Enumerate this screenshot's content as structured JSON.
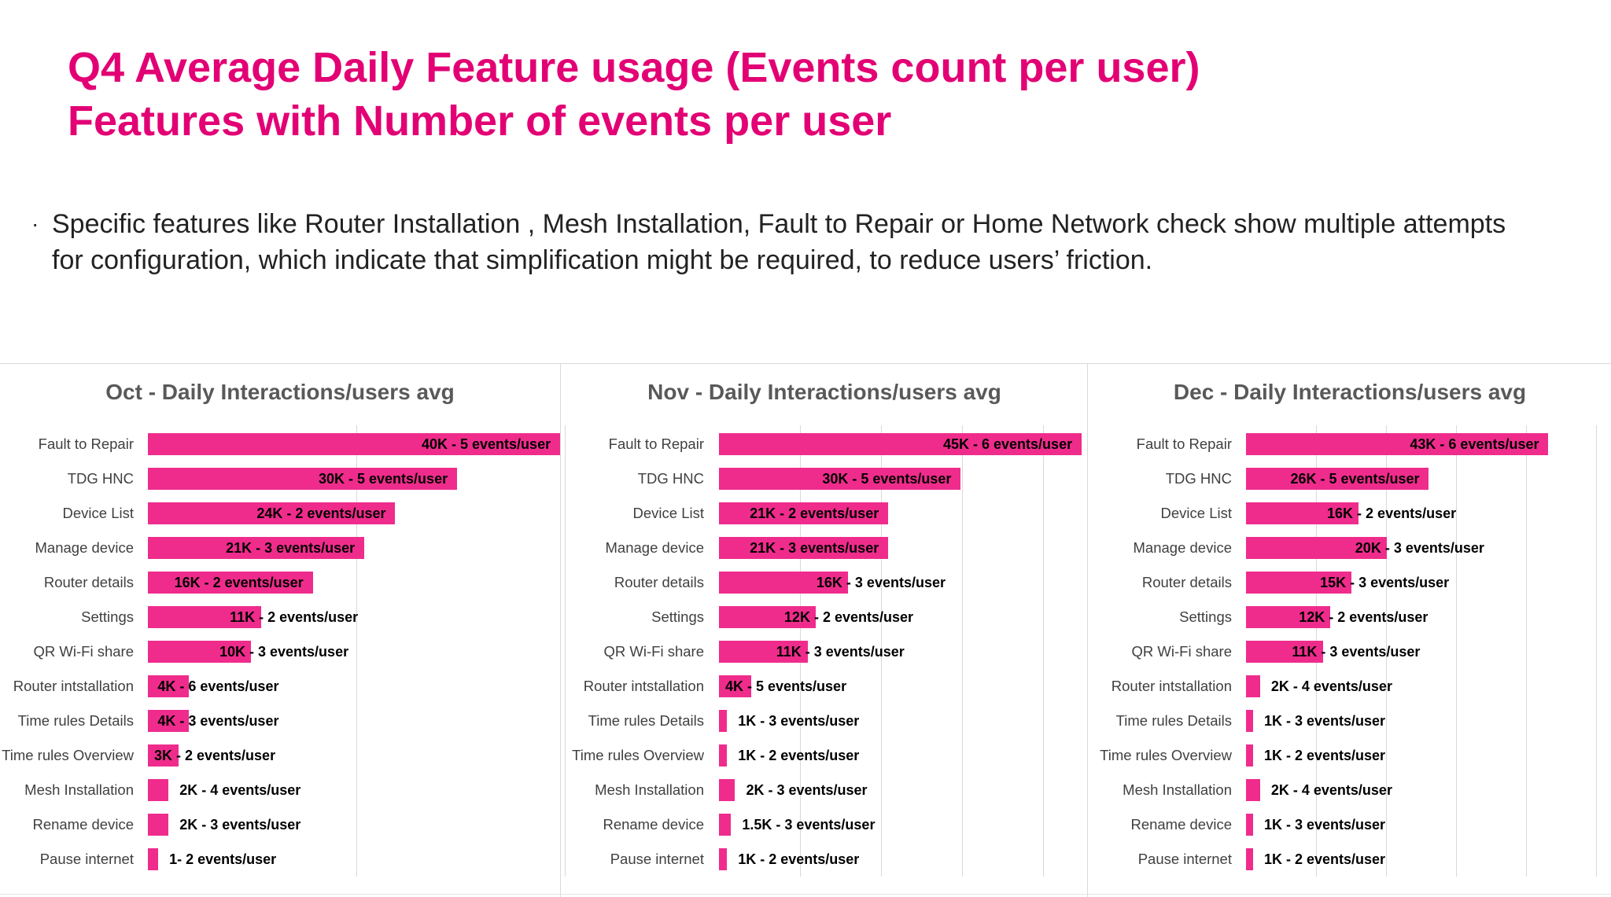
{
  "slide": {
    "title_line1": "Q4 Average Daily Feature usage (Events count per user)",
    "title_line2": "Features with Number of events per user",
    "bullet": "Specific features like Router Installation , Mesh Installation, Fault to Repair or Home Network check show multiple attempts for configuration, which indicate that simplification might be required, to reduce users’ friction.",
    "accent_color": "#e20074",
    "bar_color": "#ef2c8c"
  },
  "chart_data": [
    {
      "type": "bar",
      "orientation": "horizontal",
      "title": "Oct - Daily Interactions/users avg",
      "categories": [
        "Fault to Repair",
        "TDG HNC",
        "Device List",
        "Manage device",
        "Router details",
        "Settings",
        "QR Wi-Fi share",
        "Router intstallation",
        "Time rules Details",
        "Time rules Overview",
        "Mesh Installation",
        "Rename device",
        "Pause internet"
      ],
      "values": [
        40,
        30,
        24,
        21,
        16,
        11,
        10,
        4,
        4,
        3,
        2,
        2,
        1
      ],
      "labels": [
        "40K - 5 events/user",
        "30K - 5 events/user",
        "24K -  2 events/user",
        "21K - 3 events/user",
        "16K - 2 events/user",
        "11K - 2 events/user",
        "10K - 3 events/user",
        "4K - 6 events/user",
        "4K - 3 events/user",
        "3K - 2 events/user",
        "2K - 4 events/user",
        "2K - 3 events/user",
        "1- 2 events/user"
      ],
      "xlim": [
        0,
        40
      ],
      "grid": true
    },
    {
      "type": "bar",
      "orientation": "horizontal",
      "title": "Nov - Daily Interactions/users avg",
      "categories": [
        "Fault to Repair",
        "TDG HNC",
        "Device List",
        "Manage device",
        "Router details",
        "Settings",
        "QR Wi-Fi share",
        "Router intstallation",
        "Time rules Details",
        "Time rules Overview",
        "Mesh Installation",
        "Rename device",
        "Pause internet"
      ],
      "values": [
        45,
        30,
        21,
        21,
        16,
        12,
        11,
        4,
        1,
        1,
        2,
        1.5,
        1
      ],
      "labels": [
        "45K - 6 events/user",
        "30K - 5 events/user",
        "21K - 2 events/user",
        "21K - 3 events/user",
        "16K - 3 events/user",
        "12K - 2 events/user",
        "11K - 3 events/user",
        "4K - 5 events/user",
        "1K - 3 events/user",
        "1K - 2 events/user",
        "2K - 3 events/user",
        "1.5K - 3 events/user",
        "1K - 2 events/user"
      ],
      "xlim": [
        0,
        45
      ],
      "grid": true
    },
    {
      "type": "bar",
      "orientation": "horizontal",
      "title": "Dec - Daily Interactions/users avg",
      "categories": [
        "Fault to Repair",
        "TDG HNC",
        "Device List",
        "Manage device",
        "Router details",
        "Settings",
        "QR Wi-Fi share",
        "Router intstallation",
        "Time rules Details",
        "Time rules Overview",
        "Mesh Installation",
        "Rename device",
        "Pause internet"
      ],
      "values": [
        43,
        26,
        16,
        20,
        15,
        12,
        11,
        2,
        1,
        1,
        2,
        1,
        1
      ],
      "labels": [
        "43K - 6 events/user",
        "26K - 5 events/user",
        "16K - 2 events/user",
        "20K - 3 events/user",
        "15K - 3 events/user",
        "12K - 2 events/user",
        "11K - 3 events/user",
        "2K - 4 events/user",
        "1K - 3 events/user",
        "1K - 2 events/user",
        "2K - 4 events/user",
        "1K - 3 events/user",
        "1K - 2 events/user"
      ],
      "xlim": [
        0,
        50
      ],
      "grid": true
    }
  ]
}
